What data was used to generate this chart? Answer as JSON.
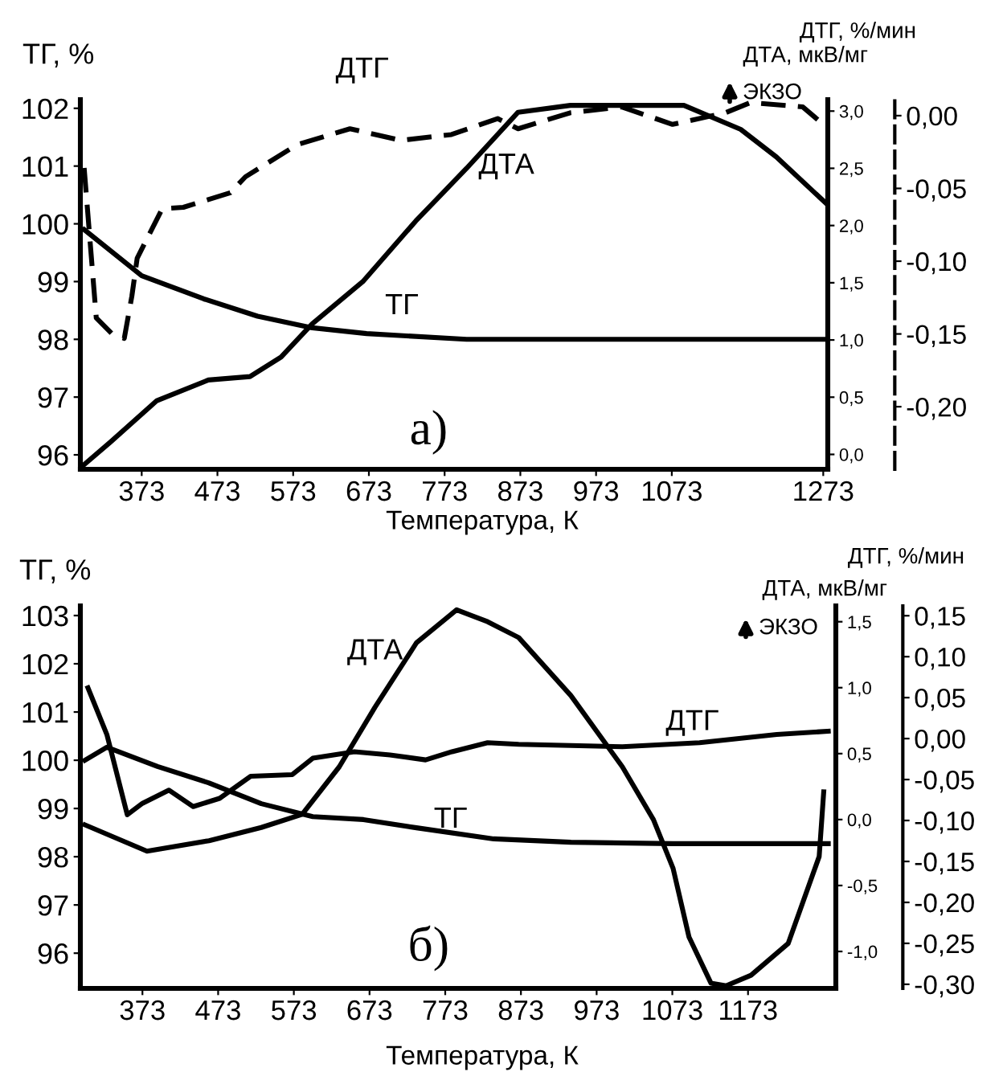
{
  "chart_data": [
    {
      "type": "line",
      "xlabel": "Температура, К",
      "ylabel": "ТГ, %",
      "y2label": "ДТА, мкВ/мг",
      "y3label": "ДТГ, %/мин",
      "xlim": [
        292,
        1279
      ],
      "xticks": [
        373,
        473,
        573,
        673,
        773,
        873,
        973,
        1073,
        1273
      ],
      "ylim": [
        95.75,
        102.15
      ],
      "yticks": [
        96,
        97,
        98,
        99,
        100,
        101,
        102
      ],
      "y2lim": [
        -0.13,
        3.1
      ],
      "y2ticks": [
        {
          "value": 0,
          "label": "0,0"
        },
        {
          "value": 0.5,
          "label": "0,5"
        },
        {
          "value": 1,
          "label": "1,0"
        },
        {
          "value": 1.5,
          "label": "1,5"
        },
        {
          "value": 2,
          "label": "2,0"
        },
        {
          "value": 2.5,
          "label": "2,5"
        },
        {
          "value": 3,
          "label": "3,0"
        }
      ],
      "y3lim": [
        -0.243,
        0.011
      ],
      "y3ticks": [
        {
          "value": 0,
          "label": "0,00"
        },
        {
          "value": -0.05,
          "label": "-0,05"
        },
        {
          "value": -0.1,
          "label": "-0,10"
        },
        {
          "value": -0.15,
          "label": "-0,15"
        },
        {
          "value": -0.2,
          "label": "-0,20"
        }
      ],
      "annotations": [
        "а)",
        "ЭКЗО"
      ],
      "series": [
        {
          "name": "ТГ",
          "color": "#000000",
          "axis": "y",
          "line_style": "solid",
          "x": [
            297,
            373,
            455,
            526,
            598,
            670,
            802,
            1279
          ],
          "values": [
            99.9,
            99.1,
            98.7,
            98.4,
            98.2,
            98.1,
            98.0,
            98.0
          ]
        },
        {
          "name": "ДТА",
          "color": "#000000",
          "axis": "y2",
          "line_style": "solid",
          "x": [
            295,
            332,
            393,
            461,
            516,
            557,
            598,
            665,
            735,
            802,
            870,
            939,
            1089,
            1164,
            1211,
            1279
          ],
          "values": [
            -0.1,
            0.11,
            0.47,
            0.65,
            0.68,
            0.85,
            1.14,
            1.51,
            2.04,
            2.5,
            2.99,
            3.05,
            3.05,
            2.84,
            2.6,
            2.18
          ]
        },
        {
          "name": "ДТГ",
          "color": "#000000",
          "axis": "y3",
          "line_style": "dashed",
          "x": [
            297,
            313,
            334,
            350,
            360,
            367,
            400,
            428,
            490,
            510,
            578,
            648,
            715,
            782,
            843,
            870,
            939,
            1007,
            1074,
            1144,
            1177,
            1246,
            1273
          ],
          "values": [
            -0.036,
            -0.139,
            -0.15,
            -0.153,
            -0.124,
            -0.098,
            -0.064,
            -0.063,
            -0.053,
            -0.042,
            -0.02,
            -0.009,
            -0.017,
            -0.013,
            -0.002,
            -0.009,
            0.002,
            0.006,
            -0.006,
            0.002,
            0.009,
            0.006,
            -0.006
          ]
        }
      ]
    },
    {
      "type": "line",
      "xlabel": "Температура, К",
      "ylabel": "ТГ, %",
      "y2label": "ДТА, мкВ/мг",
      "y3label": "ДТГ, %/мин",
      "xlim": [
        291,
        1289
      ],
      "xticks": [
        373,
        473,
        573,
        673,
        773,
        873,
        973,
        1073,
        1173
      ],
      "ylim": [
        95.27,
        103.2
      ],
      "yticks": [
        96,
        97,
        98,
        99,
        100,
        101,
        102,
        103
      ],
      "y2lim": [
        -1.28,
        1.62
      ],
      "y2ticks": [
        {
          "value": -1,
          "label": "-1,0"
        },
        {
          "value": -0.5,
          "label": "-0,5"
        },
        {
          "value": 0,
          "label": "0,0"
        },
        {
          "value": 0.5,
          "label": "0,5"
        },
        {
          "value": 1,
          "label": "1,0"
        },
        {
          "value": 1.5,
          "label": "1,5"
        }
      ],
      "y3lim": [
        -0.305,
        0.162
      ],
      "y3ticks": [
        {
          "value": 0.15,
          "label": "0,15"
        },
        {
          "value": 0.1,
          "label": "0,10"
        },
        {
          "value": 0.05,
          "label": "0,05"
        },
        {
          "value": 0,
          "label": "0,00"
        },
        {
          "value": -0.05,
          "label": "-0,05"
        },
        {
          "value": -0.1,
          "label": "-0,10"
        },
        {
          "value": -0.15,
          "label": "-0,15"
        },
        {
          "value": -0.2,
          "label": "-0,20"
        },
        {
          "value": -0.25,
          "label": "-0,25"
        },
        {
          "value": -0.3,
          "label": "-0,30"
        }
      ],
      "annotations": [
        "б)",
        "ЭКЗО"
      ],
      "series": [
        {
          "name": "ТГ",
          "color": "#000000",
          "axis": "y",
          "line_style": "solid",
          "x": [
            297,
            326,
            393,
            461,
            530,
            598,
            665,
            735,
            837,
            939,
            1074,
            1279
          ],
          "values": [
            100.0,
            100.27,
            99.87,
            99.53,
            99.1,
            98.83,
            98.77,
            98.6,
            98.37,
            98.3,
            98.27,
            98.27
          ]
        },
        {
          "name": "ДТА",
          "color": "#000000",
          "axis": "y2",
          "line_style": "solid",
          "x": [
            297,
            379,
            461,
            530,
            584,
            633,
            680,
            735,
            788,
            829,
            870,
            939,
            1007,
            1048,
            1074,
            1095,
            1124,
            1144,
            1177,
            1226,
            1267,
            1273
          ],
          "values": [
            -0.04,
            -0.24,
            -0.16,
            -0.06,
            0.04,
            0.4,
            0.85,
            1.34,
            1.59,
            1.5,
            1.38,
            0.94,
            0.4,
            0.0,
            -0.37,
            -0.89,
            -1.24,
            -1.26,
            -1.18,
            -0.94,
            -0.28,
            0.21
          ]
        },
        {
          "name": "ДТГ",
          "color": "#000000",
          "axis": "y3",
          "line_style": "solid",
          "x": [
            301,
            326,
            353,
            373,
            408,
            440,
            475,
            516,
            571,
            598,
            653,
            700,
            747,
            782,
            829,
            870,
            1007,
            1109,
            1211,
            1279
          ],
          "values": [
            0.062,
            0.005,
            -0.093,
            -0.079,
            -0.063,
            -0.083,
            -0.073,
            -0.046,
            -0.044,
            -0.024,
            -0.016,
            -0.02,
            -0.026,
            -0.016,
            -0.005,
            -0.007,
            -0.01,
            -0.005,
            0.005,
            0.009
          ]
        }
      ]
    }
  ]
}
